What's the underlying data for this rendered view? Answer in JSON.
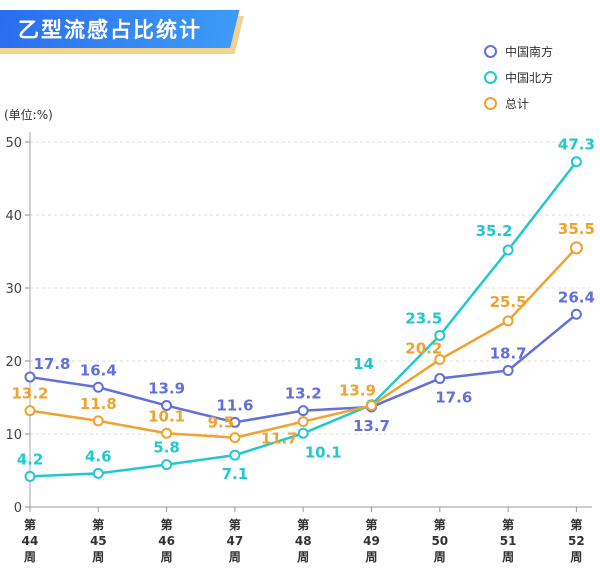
{
  "title": "乙型流感占比统计",
  "chart_data": {
    "type": "line",
    "title": "乙型流感占比统计",
    "ylabel": "(单位:%)",
    "ylim": [
      0,
      50
    ],
    "yticks": [
      0,
      10,
      20,
      30,
      40,
      50
    ],
    "categories": [
      "第\n44\n周",
      "第\n45\n周",
      "第\n46\n周",
      "第\n47\n周",
      "第\n48\n周",
      "第\n49\n周",
      "第\n50\n周",
      "第\n51\n周",
      "第\n52\n周"
    ],
    "grid": true,
    "legend": "top-right",
    "series": [
      {
        "name": "中国南方",
        "color": "#6270dc",
        "values": [
          17.8,
          16.4,
          13.9,
          11.6,
          13.2,
          13.7,
          17.6,
          18.7,
          26.4
        ]
      },
      {
        "name": "中国北方",
        "color": "#22c8cf",
        "values": [
          4.2,
          4.6,
          5.8,
          7.1,
          10.1,
          14,
          23.5,
          35.2,
          47.3
        ]
      },
      {
        "name": "总计",
        "color": "#f0a22e",
        "values": [
          13.2,
          11.8,
          10.1,
          9.5,
          11.7,
          13.9,
          20.2,
          25.5,
          35.5
        ]
      }
    ]
  }
}
